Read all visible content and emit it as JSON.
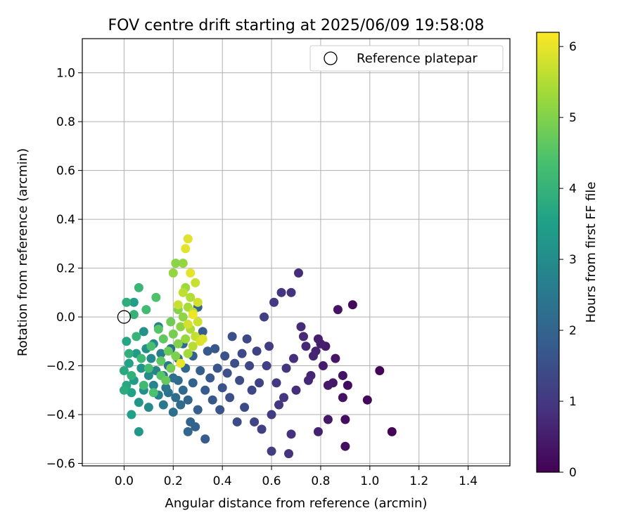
{
  "chart_data": {
    "type": "scatter",
    "title": "FOV centre drift starting at 2025/06/09 19:58:08",
    "xlabel": "Angular distance from reference (arcmin)",
    "ylabel": "Rotation from reference (arcmin)",
    "xlim": [
      -0.17,
      1.57
    ],
    "ylim": [
      -0.61,
      1.14
    ],
    "xticks": [
      "0.0",
      "0.2",
      "0.4",
      "0.6",
      "0.8",
      "1.0",
      "1.2",
      "1.4"
    ],
    "yticks": [
      "−0.6",
      "−0.4",
      "−0.2",
      "0.0",
      "0.2",
      "0.4",
      "0.6",
      "0.8",
      "1.0"
    ],
    "grid": true,
    "legend": {
      "placement": "top-right",
      "entries": [
        {
          "label": "Reference platepar",
          "marker": "open-circle"
        }
      ]
    },
    "reference_point": {
      "x": 0.0,
      "y": 0.0
    },
    "colorbar": {
      "label": "Hours from first FF file",
      "range": [
        0,
        6.2
      ],
      "ticks": [
        "0",
        "1",
        "2",
        "3",
        "4",
        "5",
        "6"
      ],
      "colormap": "viridis"
    },
    "series": [
      {
        "points": [
          [
            1.09,
            -0.47,
            0.05
          ],
          [
            1.04,
            -0.22,
            0.08
          ],
          [
            0.99,
            -0.34,
            0.1
          ],
          [
            0.93,
            0.05,
            0.15
          ],
          [
            0.91,
            -0.28,
            0.2
          ],
          [
            0.9,
            -0.42,
            0.22
          ],
          [
            0.9,
            -0.53,
            0.25
          ],
          [
            0.89,
            -0.33,
            0.3
          ],
          [
            0.89,
            -0.24,
            0.32
          ],
          [
            0.87,
            0.03,
            0.35
          ],
          [
            0.86,
            -0.17,
            0.38
          ],
          [
            0.85,
            -0.27,
            0.4
          ],
          [
            0.83,
            -0.42,
            0.42
          ],
          [
            0.83,
            -0.28,
            0.45
          ],
          [
            0.82,
            -0.12,
            0.48
          ],
          [
            0.81,
            -0.2,
            0.5
          ],
          [
            0.8,
            -0.11,
            0.52
          ],
          [
            0.79,
            -0.09,
            0.55
          ],
          [
            0.79,
            -0.47,
            0.58
          ],
          [
            0.78,
            -0.14,
            0.6
          ],
          [
            0.77,
            -0.16,
            0.62
          ],
          [
            0.76,
            -0.24,
            0.65
          ],
          [
            0.75,
            -0.26,
            0.68
          ],
          [
            0.74,
            -0.12,
            0.7
          ],
          [
            0.73,
            -0.08,
            0.72
          ],
          [
            0.72,
            -0.04,
            0.75
          ],
          [
            0.71,
            0.18,
            0.78
          ],
          [
            0.7,
            -0.3,
            0.8
          ],
          [
            0.69,
            -0.17,
            0.82
          ],
          [
            0.68,
            -0.48,
            0.85
          ],
          [
            0.68,
            0.1,
            0.88
          ],
          [
            0.67,
            -0.56,
            0.9
          ],
          [
            0.66,
            -0.21,
            0.92
          ],
          [
            0.65,
            -0.33,
            0.95
          ],
          [
            0.64,
            0.1,
            0.98
          ],
          [
            0.63,
            -0.36,
            1.0
          ],
          [
            0.62,
            -0.27,
            1.02
          ],
          [
            0.61,
            0.06,
            1.05
          ],
          [
            0.6,
            -0.55,
            1.08
          ],
          [
            0.6,
            -0.4,
            1.1
          ],
          [
            0.59,
            -0.12,
            1.12
          ],
          [
            0.58,
            -0.2,
            1.15
          ],
          [
            0.57,
            0.0,
            1.18
          ],
          [
            0.56,
            -0.46,
            1.2
          ],
          [
            0.55,
            -0.27,
            1.22
          ],
          [
            0.54,
            -0.14,
            1.25
          ],
          [
            0.53,
            -0.43,
            1.28
          ],
          [
            0.52,
            -0.3,
            1.3
          ],
          [
            0.51,
            -0.2,
            1.32
          ],
          [
            0.5,
            -0.09,
            1.35
          ],
          [
            0.49,
            -0.37,
            1.38
          ],
          [
            0.48,
            -0.15,
            1.4
          ],
          [
            0.47,
            -0.26,
            1.42
          ],
          [
            0.46,
            -0.43,
            1.45
          ],
          [
            0.45,
            -0.19,
            1.48
          ],
          [
            0.44,
            -0.08,
            1.5
          ],
          [
            0.43,
            -0.33,
            1.52
          ],
          [
            0.42,
            -0.23,
            1.55
          ],
          [
            0.41,
            -0.16,
            1.58
          ],
          [
            0.4,
            -0.29,
            1.6
          ],
          [
            0.39,
            -0.38,
            1.62
          ],
          [
            0.38,
            -0.21,
            1.65
          ],
          [
            0.37,
            -0.13,
            1.68
          ],
          [
            0.36,
            -0.34,
            1.7
          ],
          [
            0.35,
            -0.25,
            1.72
          ],
          [
            0.34,
            -0.14,
            1.75
          ],
          [
            0.33,
            -0.5,
            1.78
          ],
          [
            0.33,
            -0.3,
            1.8
          ],
          [
            0.32,
            -0.06,
            1.82
          ],
          [
            0.31,
            -0.22,
            1.85
          ],
          [
            0.3,
            -0.38,
            1.88
          ],
          [
            0.3,
            0.04,
            1.9
          ],
          [
            0.29,
            -0.45,
            1.92
          ],
          [
            0.28,
            -0.27,
            1.95
          ],
          [
            0.28,
            -0.16,
            1.98
          ],
          [
            0.27,
            -0.43,
            2.0
          ],
          [
            0.26,
            -0.34,
            2.02
          ],
          [
            0.26,
            -0.47,
            2.05
          ],
          [
            0.25,
            -0.21,
            2.08
          ],
          [
            0.24,
            -0.3,
            2.1
          ],
          [
            0.24,
            -0.11,
            2.12
          ],
          [
            0.23,
            -0.36,
            2.15
          ],
          [
            0.22,
            -0.26,
            2.18
          ],
          [
            0.22,
            -0.17,
            2.2
          ],
          [
            0.21,
            -0.33,
            2.22
          ],
          [
            0.2,
            -0.39,
            2.25
          ],
          [
            0.2,
            -0.25,
            2.28
          ],
          [
            0.19,
            -0.13,
            2.3
          ],
          [
            0.18,
            -0.31,
            2.35
          ],
          [
            0.18,
            -0.2,
            2.4
          ],
          [
            0.17,
            -0.29,
            2.45
          ],
          [
            0.16,
            -0.36,
            2.5
          ],
          [
            0.16,
            -0.24,
            2.55
          ],
          [
            0.15,
            -0.15,
            2.6
          ],
          [
            0.14,
            -0.32,
            2.65
          ],
          [
            0.14,
            -0.04,
            2.7
          ],
          [
            0.13,
            -0.22,
            2.75
          ],
          [
            0.12,
            -0.28,
            2.8
          ],
          [
            0.12,
            -0.11,
            2.85
          ],
          [
            0.11,
            -0.17,
            2.9
          ],
          [
            0.1,
            -0.37,
            2.95
          ],
          [
            0.1,
            -0.24,
            3.0
          ],
          [
            0.09,
            -0.13,
            3.05
          ],
          [
            0.08,
            -0.3,
            3.1
          ],
          [
            0.08,
            -0.06,
            3.15
          ],
          [
            0.07,
            -0.21,
            3.2
          ],
          [
            0.06,
            -0.35,
            3.25
          ],
          [
            0.06,
            -0.47,
            3.3
          ],
          [
            0.05,
            -0.15,
            3.35
          ],
          [
            0.04,
            -0.26,
            3.4
          ],
          [
            0.04,
            0.06,
            3.45
          ],
          [
            0.03,
            -0.4,
            3.5
          ],
          [
            0.03,
            -0.31,
            3.55
          ],
          [
            0.02,
            -0.19,
            3.6
          ],
          [
            0.01,
            -0.1,
            3.65
          ],
          [
            0.01,
            -0.28,
            3.7
          ],
          [
            0.0,
            -0.22,
            3.75
          ],
          [
            0.0,
            -0.3,
            3.8
          ],
          [
            0.01,
            0.06,
            3.85
          ],
          [
            0.02,
            -0.15,
            3.9
          ],
          [
            0.03,
            -0.24,
            3.95
          ],
          [
            0.04,
            0.01,
            4.0
          ],
          [
            0.05,
            -0.08,
            4.05
          ],
          [
            0.06,
            0.12,
            4.1
          ],
          [
            0.07,
            -0.17,
            4.15
          ],
          [
            0.08,
            -0.28,
            4.2
          ],
          [
            0.09,
            0.03,
            4.25
          ],
          [
            0.1,
            -0.21,
            4.3
          ],
          [
            0.11,
            -0.12,
            4.35
          ],
          [
            0.12,
            -0.31,
            4.4
          ],
          [
            0.13,
            0.08,
            4.45
          ],
          [
            0.14,
            -0.05,
            4.5
          ],
          [
            0.15,
            -0.24,
            4.55
          ],
          [
            0.15,
            -0.18,
            4.6
          ],
          [
            0.16,
            -0.09,
            4.65
          ],
          [
            0.17,
            -0.26,
            4.7
          ],
          [
            0.18,
            -0.14,
            4.75
          ],
          [
            0.19,
            -0.02,
            4.8
          ],
          [
            0.19,
            -0.21,
            4.85
          ],
          [
            0.2,
            -0.07,
            4.9
          ],
          [
            0.21,
            -0.16,
            4.95
          ],
          [
            0.22,
            -0.11,
            5.0
          ],
          [
            0.22,
            0.03,
            5.05
          ],
          [
            0.23,
            -0.04,
            5.1
          ],
          [
            0.24,
            0.0,
            5.15
          ],
          [
            0.24,
            0.22,
            5.2
          ],
          [
            0.25,
            -0.09,
            5.25
          ],
          [
            0.25,
            0.12,
            5.3
          ],
          [
            0.26,
            -0.15,
            5.35
          ],
          [
            0.26,
            0.04,
            5.4
          ],
          [
            0.27,
            -0.05,
            5.45
          ],
          [
            0.27,
            0.08,
            5.5
          ],
          [
            0.28,
            -0.12,
            5.55
          ],
          [
            0.28,
            0.02,
            5.6
          ],
          [
            0.29,
            -0.08,
            5.65
          ],
          [
            0.29,
            0.14,
            5.7
          ],
          [
            0.3,
            -0.02,
            5.75
          ],
          [
            0.3,
            0.06,
            5.8
          ],
          [
            0.31,
            -0.1,
            5.85
          ],
          [
            0.32,
            -0.09,
            5.9
          ],
          [
            0.26,
            0.32,
            5.92
          ],
          [
            0.25,
            0.28,
            5.95
          ],
          [
            0.27,
            0.18,
            5.98
          ],
          [
            0.23,
            -0.19,
            6.0
          ],
          [
            0.21,
            0.22,
            5.1
          ],
          [
            0.2,
            0.18,
            5.2
          ],
          [
            0.24,
            0.1,
            5.6
          ],
          [
            0.26,
            -0.03,
            5.8
          ],
          [
            0.22,
            0.05,
            5.7
          ],
          [
            0.28,
            0.01,
            6.05
          ]
        ]
      }
    ]
  }
}
